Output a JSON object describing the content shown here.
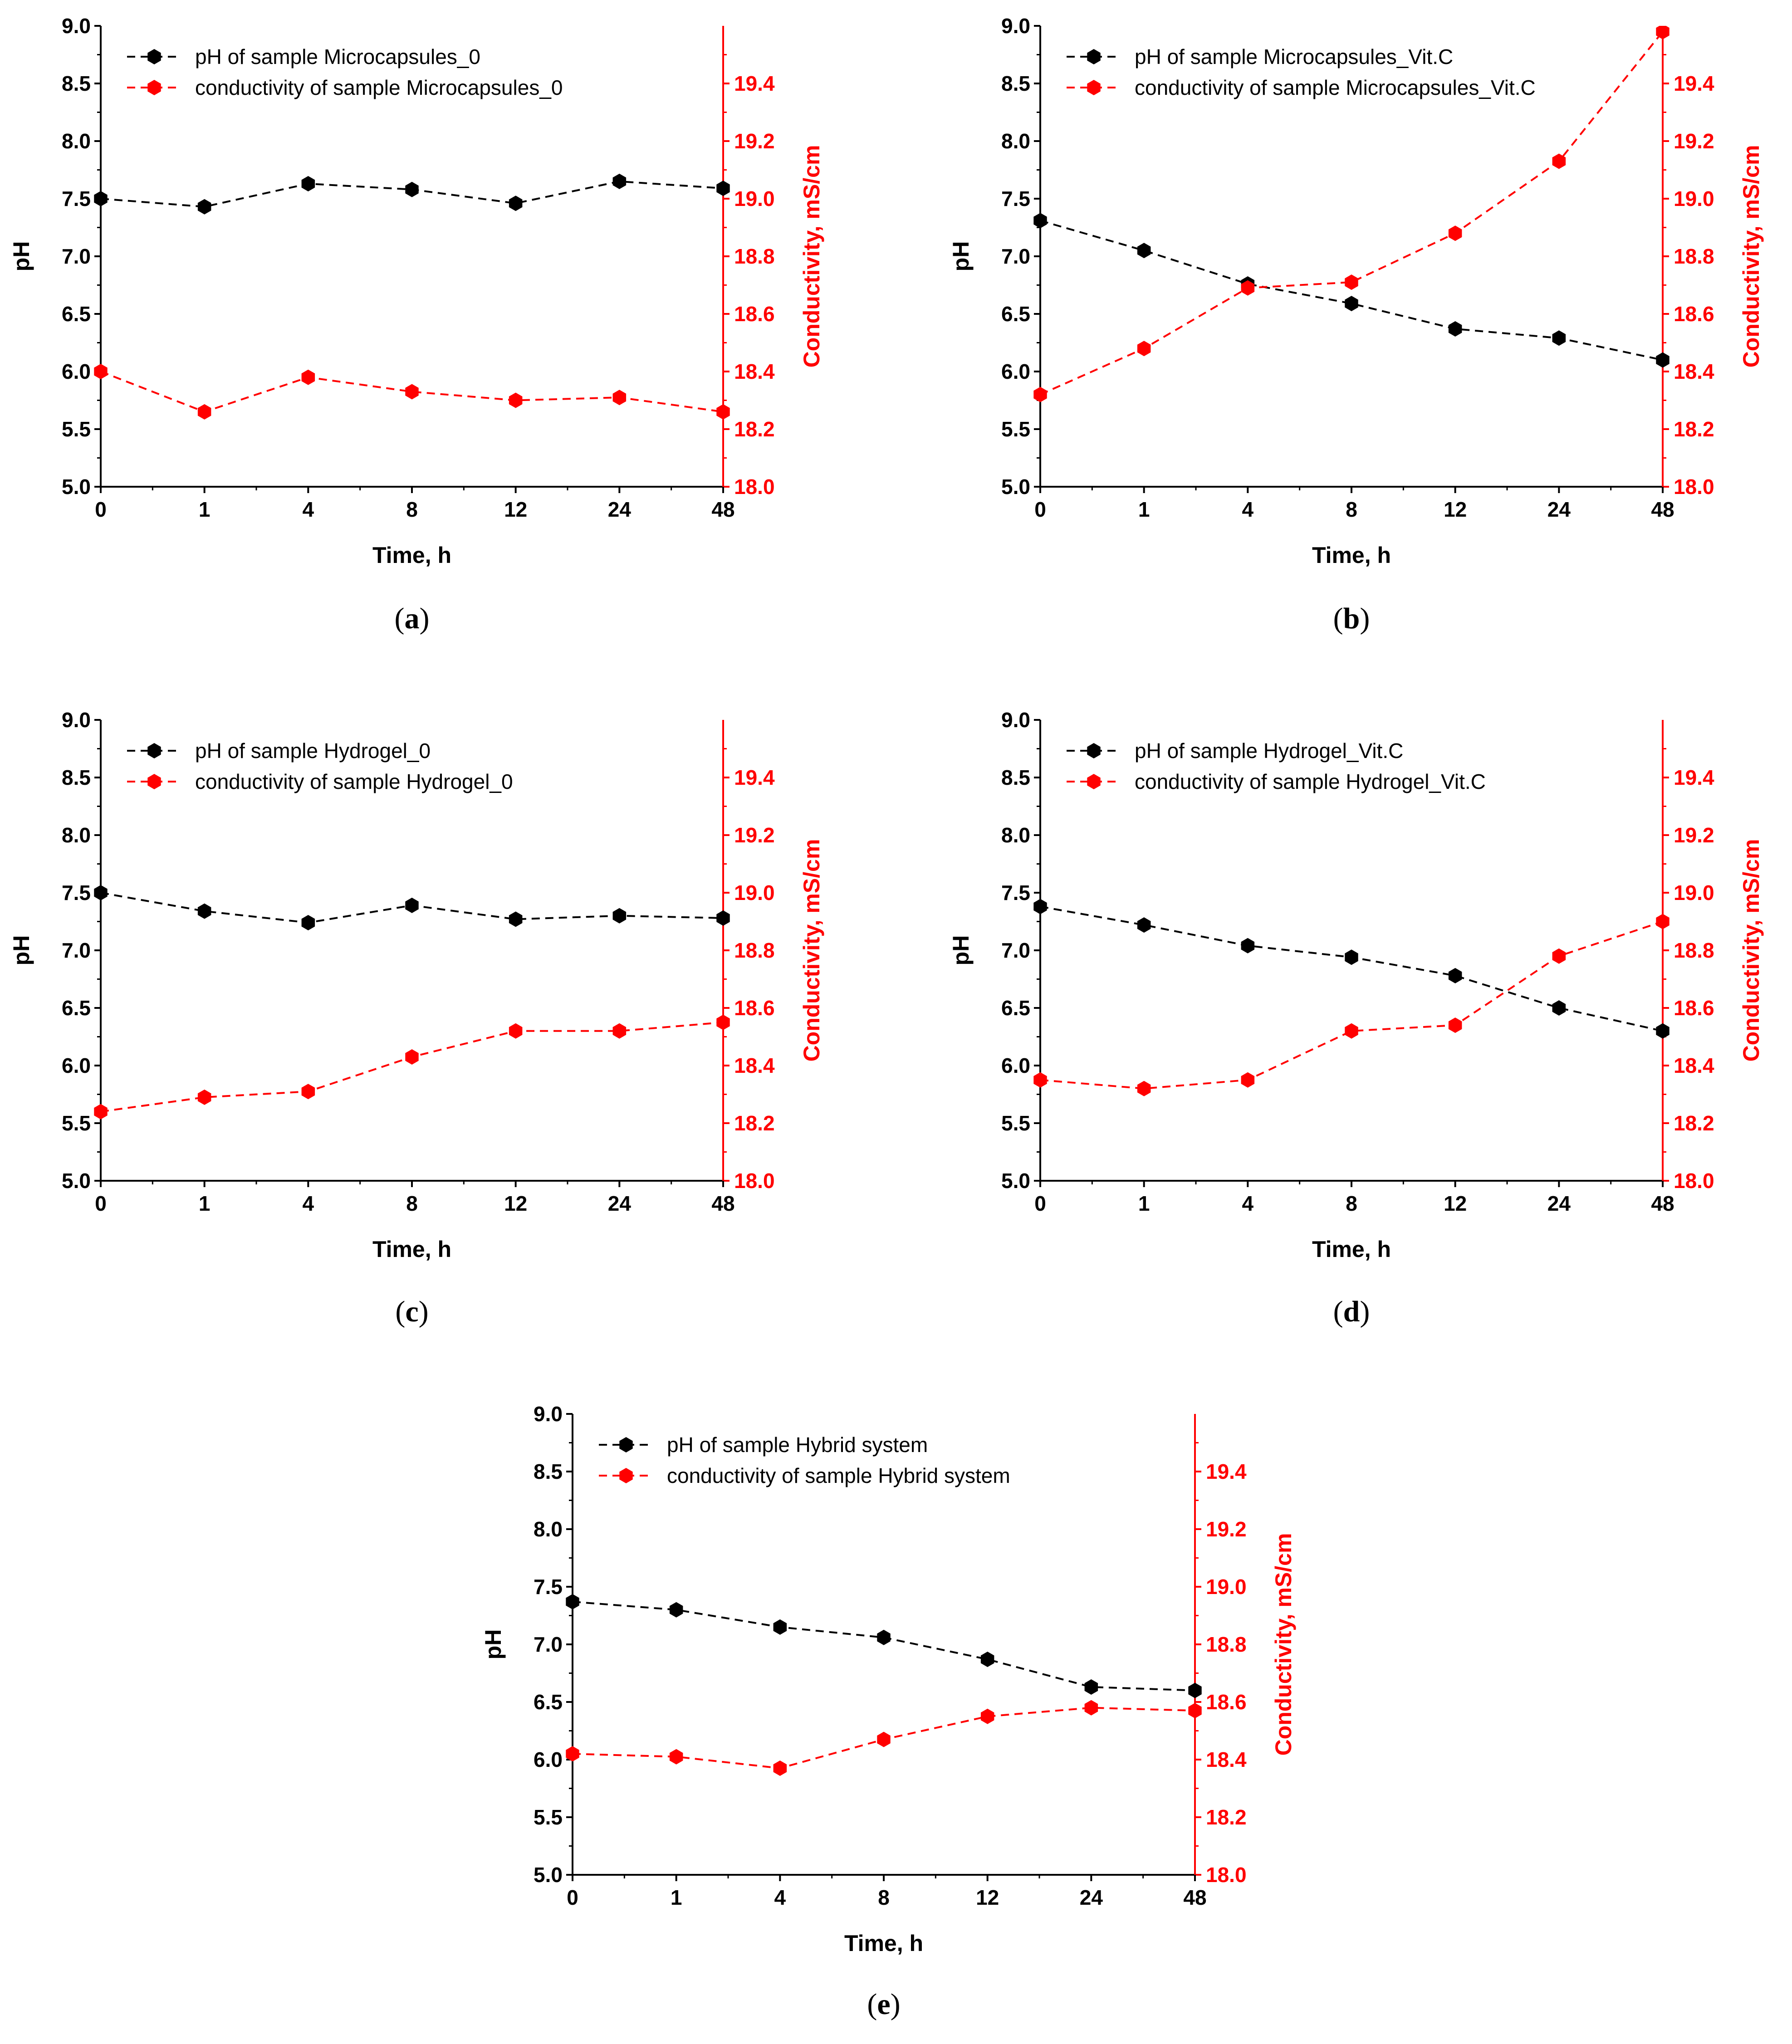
{
  "colors": {
    "ph": "#000000",
    "conductivity": "#ff0000"
  },
  "chart_data": [
    {
      "id": "a",
      "type": "line",
      "panel_label": "a",
      "title": "",
      "xlabel": "Time, h",
      "ylabel": "pH",
      "y2label": "Conductivity, mS/cm",
      "categories": [
        "0",
        "1",
        "4",
        "8",
        "12",
        "24",
        "48"
      ],
      "x_scale": "categorical (equally spaced)",
      "ylim": [
        5.0,
        9.0
      ],
      "yticks": [
        "5.0",
        "5.5",
        "6.0",
        "6.5",
        "7.0",
        "7.5",
        "8.0",
        "8.5",
        "9.0"
      ],
      "y2lim": [
        18.0,
        19.6
      ],
      "y2ticks": [
        "18.0",
        "18.2",
        "18.4",
        "18.6",
        "18.8",
        "19.0",
        "19.2",
        "19.4"
      ],
      "legend_position": "top-left",
      "series": [
        {
          "name": "pH of sample Microcapsules_0",
          "axis": "left",
          "color": "#000000",
          "marker": "hexagon",
          "line": "dashed",
          "values": [
            7.5,
            7.43,
            7.63,
            7.58,
            7.46,
            7.65,
            7.59
          ]
        },
        {
          "name": "conductivity of sample Microcapsules_0",
          "axis": "right",
          "color": "#ff0000",
          "marker": "hexagon",
          "line": "dashed",
          "values": [
            18.4,
            18.26,
            18.38,
            18.33,
            18.3,
            18.31,
            18.26
          ]
        }
      ]
    },
    {
      "id": "b",
      "type": "line",
      "panel_label": "b",
      "title": "",
      "xlabel": "Time, h",
      "ylabel": "pH",
      "y2label": "Conductivity, mS/cm",
      "categories": [
        "0",
        "1",
        "4",
        "8",
        "12",
        "24",
        "48"
      ],
      "x_scale": "categorical (equally spaced)",
      "ylim": [
        5.0,
        9.0
      ],
      "yticks": [
        "5.0",
        "5.5",
        "6.0",
        "6.5",
        "7.0",
        "7.5",
        "8.0",
        "8.5",
        "9.0"
      ],
      "y2lim": [
        18.0,
        19.6
      ],
      "y2ticks": [
        "18.0",
        "18.2",
        "18.4",
        "18.6",
        "18.8",
        "19.0",
        "19.2",
        "19.4"
      ],
      "legend_position": "top-left",
      "series": [
        {
          "name": "pH of sample Microcapsules_Vit.C",
          "axis": "left",
          "color": "#000000",
          "marker": "hexagon",
          "line": "dashed",
          "values": [
            7.31,
            7.05,
            6.76,
            6.59,
            6.37,
            6.29,
            6.1
          ]
        },
        {
          "name": "conductivity of sample Microcapsules_Vit.C",
          "axis": "right",
          "color": "#ff0000",
          "marker": "hexagon",
          "line": "dashed",
          "values": [
            18.32,
            18.48,
            18.69,
            18.71,
            18.88,
            19.13,
            19.58
          ]
        }
      ]
    },
    {
      "id": "c",
      "type": "line",
      "panel_label": "c",
      "title": "",
      "xlabel": "Time, h",
      "ylabel": "pH",
      "y2label": "Conductivity, mS/cm",
      "categories": [
        "0",
        "1",
        "4",
        "8",
        "12",
        "24",
        "48"
      ],
      "x_scale": "categorical (equally spaced)",
      "ylim": [
        5.0,
        9.0
      ],
      "yticks": [
        "5.0",
        "5.5",
        "6.0",
        "6.5",
        "7.0",
        "7.5",
        "8.0",
        "8.5",
        "9.0"
      ],
      "y2lim": [
        18.0,
        19.6
      ],
      "y2ticks": [
        "18.0",
        "18.2",
        "18.4",
        "18.6",
        "18.8",
        "19.0",
        "19.2",
        "19.4"
      ],
      "legend_position": "top-left",
      "series": [
        {
          "name": "pH of sample Hydrogel_0",
          "axis": "left",
          "color": "#000000",
          "marker": "hexagon",
          "line": "dashed",
          "values": [
            7.5,
            7.34,
            7.24,
            7.39,
            7.27,
            7.3,
            7.28
          ]
        },
        {
          "name": "conductivity of sample Hydrogel_0",
          "axis": "right",
          "color": "#ff0000",
          "marker": "hexagon",
          "line": "dashed",
          "values": [
            18.24,
            18.29,
            18.31,
            18.43,
            18.52,
            18.52,
            18.55
          ]
        }
      ]
    },
    {
      "id": "d",
      "type": "line",
      "panel_label": "d",
      "title": "",
      "xlabel": "Time, h",
      "ylabel": "pH",
      "y2label": "Conductivity, mS/cm",
      "categories": [
        "0",
        "1",
        "4",
        "8",
        "12",
        "24",
        "48"
      ],
      "x_scale": "categorical (equally spaced)",
      "ylim": [
        5.0,
        9.0
      ],
      "yticks": [
        "5.0",
        "5.5",
        "6.0",
        "6.5",
        "7.0",
        "7.5",
        "8.0",
        "8.5",
        "9.0"
      ],
      "y2lim": [
        18.0,
        19.6
      ],
      "y2ticks": [
        "18.0",
        "18.2",
        "18.4",
        "18.6",
        "18.8",
        "19.0",
        "19.2",
        "19.4"
      ],
      "legend_position": "top-left",
      "series": [
        {
          "name": "pH of sample Hydrogel_Vit.C",
          "axis": "left",
          "color": "#000000",
          "marker": "hexagon",
          "line": "dashed",
          "values": [
            7.38,
            7.22,
            7.04,
            6.94,
            6.78,
            6.5,
            6.3
          ]
        },
        {
          "name": "conductivity of sample Hydrogel_Vit.C",
          "axis": "right",
          "color": "#ff0000",
          "marker": "hexagon",
          "line": "dashed",
          "values": [
            18.35,
            18.32,
            18.35,
            18.52,
            18.54,
            18.78,
            18.9
          ]
        }
      ]
    },
    {
      "id": "e",
      "type": "line",
      "panel_label": "e",
      "title": "",
      "xlabel": "Time, h",
      "ylabel": "pH",
      "y2label": "Conductivity, mS/cm",
      "categories": [
        "0",
        "1",
        "4",
        "8",
        "12",
        "24",
        "48"
      ],
      "x_scale": "categorical (equally spaced)",
      "ylim": [
        5.0,
        9.0
      ],
      "yticks": [
        "5.0",
        "5.5",
        "6.0",
        "6.5",
        "7.0",
        "7.5",
        "8.0",
        "8.5",
        "9.0"
      ],
      "y2lim": [
        18.0,
        19.6
      ],
      "y2ticks": [
        "18.0",
        "18.2",
        "18.4",
        "18.6",
        "18.8",
        "19.0",
        "19.2",
        "19.4"
      ],
      "legend_position": "top-left",
      "series": [
        {
          "name": "pH of sample Hybrid system",
          "axis": "left",
          "color": "#000000",
          "marker": "hexagon",
          "line": "dashed",
          "values": [
            7.37,
            7.3,
            7.15,
            7.06,
            6.87,
            6.63,
            6.6
          ]
        },
        {
          "name": "conductivity of sample Hybrid system",
          "axis": "right",
          "color": "#ff0000",
          "marker": "hexagon",
          "line": "dashed",
          "values": [
            18.42,
            18.41,
            18.37,
            18.47,
            18.55,
            18.58,
            18.57
          ]
        }
      ]
    }
  ]
}
